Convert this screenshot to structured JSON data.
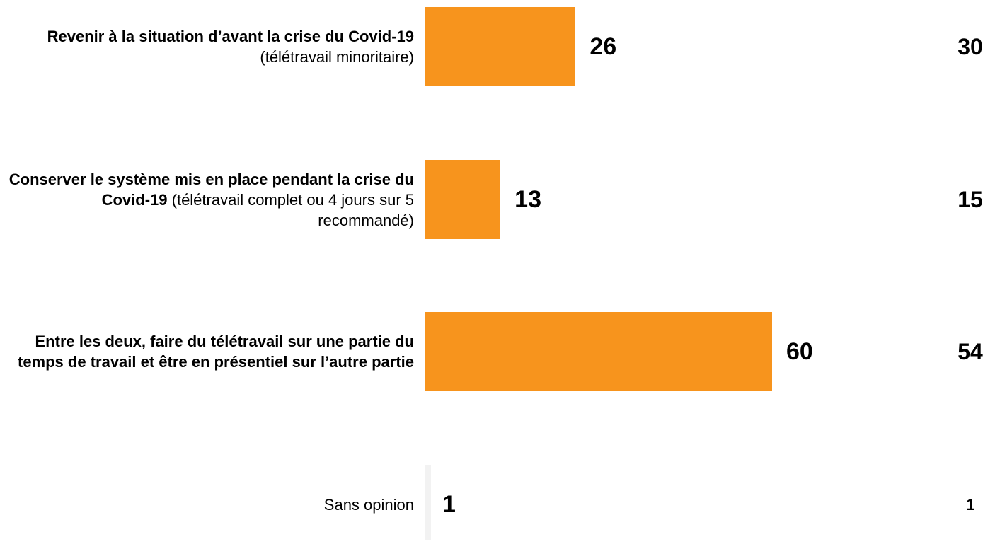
{
  "chart_data": {
    "type": "bar",
    "orientation": "horizontal",
    "categories": [
      "Revenir à la situation d’avant la crise du Covid-19",
      "Conserver le système mis en place pendant la crise du Covid-19",
      "Entre les deux, faire du télétravail sur une partie du temps de travail et être en présentiel sur l’autre partie",
      "Sans opinion"
    ],
    "category_details": [
      "(télétravail minoritaire)",
      "(télétravail complet ou 4 jours sur 5 recommandé)",
      null,
      null
    ],
    "category_bold": [
      true,
      true,
      true,
      false
    ],
    "values": [
      26,
      13,
      60,
      1
    ],
    "colors": [
      "#f7941d",
      "#f7941d",
      "#f7941d",
      "#f2f2f2"
    ],
    "comparison_values": [
      30,
      15,
      54,
      1
    ],
    "xlim": [
      0,
      60
    ]
  }
}
